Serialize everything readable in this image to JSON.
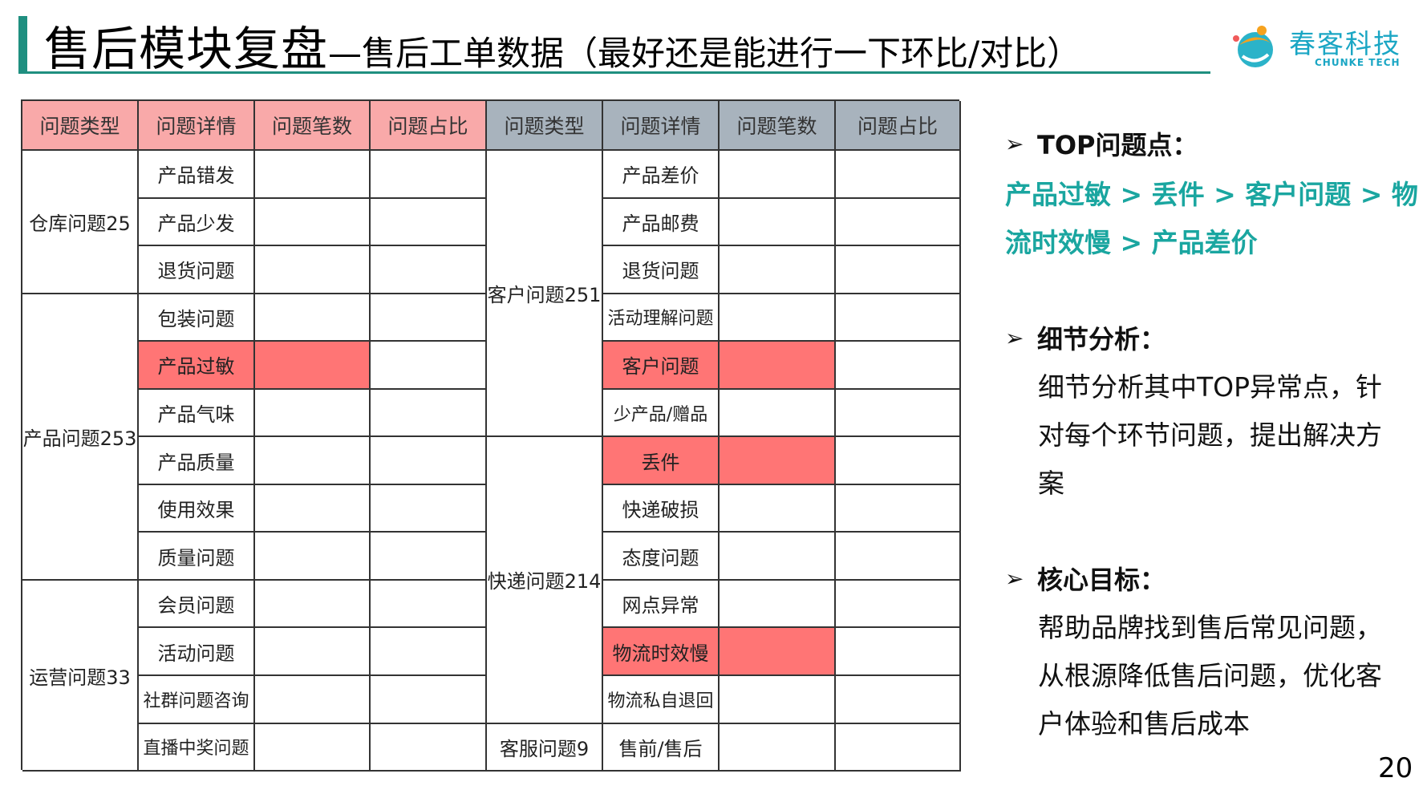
{
  "title": {
    "main": "售后模块复盘",
    "sub": "—售后工单数据（最好还是能进行一下环比/对比）"
  },
  "logo": {
    "name": "春客科技",
    "sub": "CHUNKE TECH",
    "icon": "chunke-logo-icon"
  },
  "table": {
    "headers_left": [
      "问题类型",
      "问题详情",
      "问题笔数",
      "问题占比"
    ],
    "headers_right": [
      "问题类型",
      "问题详情",
      "问题笔数",
      "问题占比"
    ],
    "left_groups": [
      {
        "type": "仓库问题25",
        "details": [
          "产品错发",
          "产品少发",
          "退货问题"
        ]
      },
      {
        "type": "产品问题253",
        "details": [
          "包装问题",
          "产品过敏",
          "产品气味",
          "产品质量",
          "使用效果",
          "质量问题"
        ]
      },
      {
        "type": "运营问题33",
        "details": [
          "会员问题",
          "活动问题",
          "社群问题咨询",
          "直播中奖问题"
        ]
      }
    ],
    "right_groups": [
      {
        "type": "客户问题251",
        "details": [
          "产品差价",
          "产品邮费",
          "退货问题",
          "活动理解问题",
          "客户问题",
          "少产品/赠品"
        ]
      },
      {
        "type": "快递问题214",
        "details": [
          "丢件",
          "快递破损",
          "态度问题",
          "网点异常",
          "物流时效慢",
          "物流私自退回"
        ]
      },
      {
        "type": "客服问题9",
        "details": [
          "售前/售后"
        ]
      }
    ],
    "highlight_color": "#ff7575",
    "header_left_color": "#f9a9a9",
    "header_right_color": "#a8b3bd"
  },
  "panel": {
    "top_heading": "TOP问题点：",
    "top_line1": "产品过敏 > 丢件 > 客户问题 > 物",
    "top_line2": "流时效慢 > 产品差价",
    "detail_heading": "细节分析：",
    "detail_lines": [
      "细节分析其中TOP异常点，针",
      "对每个环节问题，提出解决方",
      "案"
    ],
    "goal_heading": "核心目标：",
    "goal_lines": [
      "帮助品牌找到售后常见问题，",
      "从根源降低售后问题，优化客",
      "户体验和售后成本"
    ],
    "accent_color": "#1aa6a0"
  },
  "page_number": "20"
}
